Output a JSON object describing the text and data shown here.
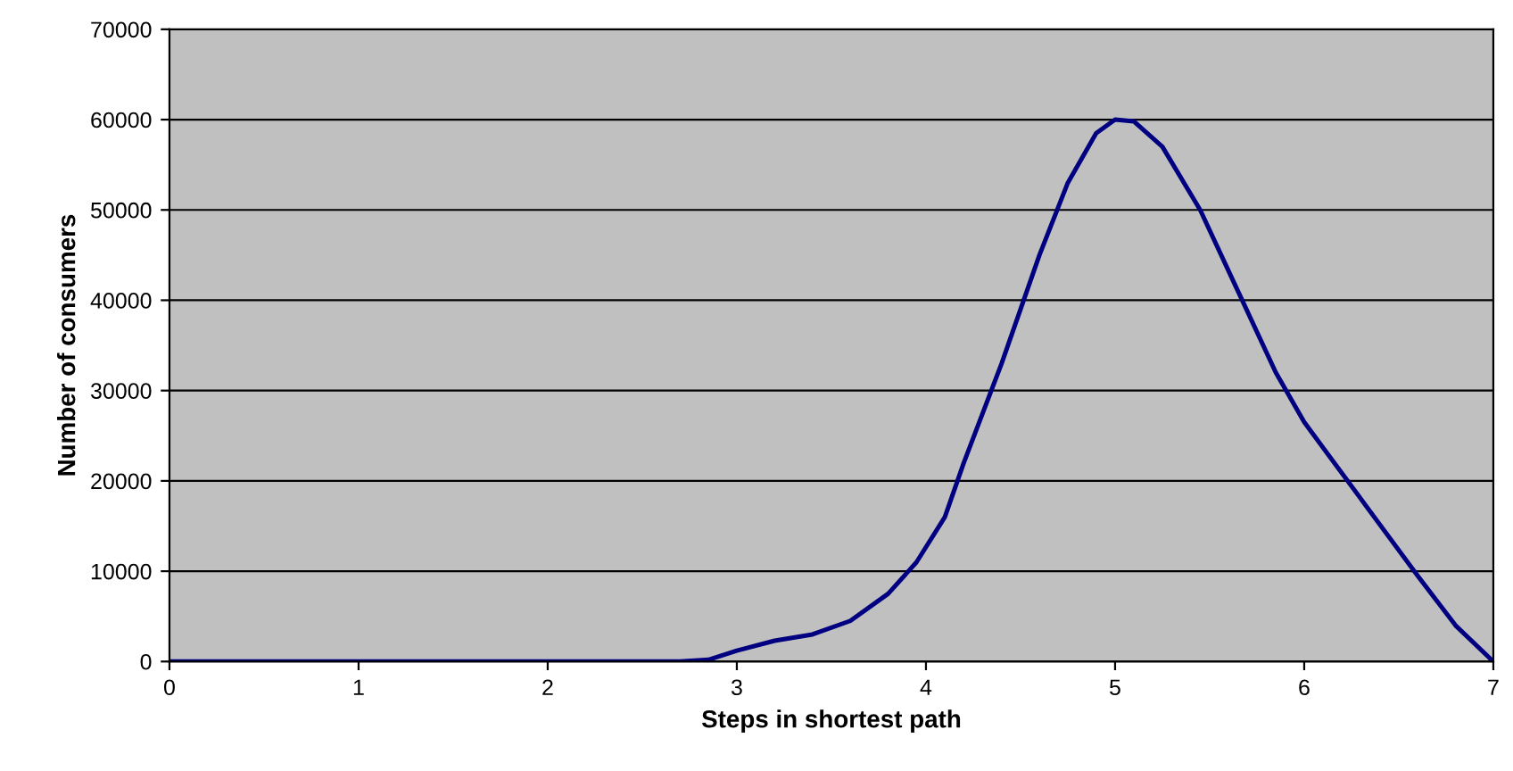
{
  "chart_data": {
    "type": "line",
    "xlabel": "Steps in shortest path",
    "ylabel": "Number of consumers",
    "series": [
      {
        "color": "#000080",
        "x": [
          0,
          1,
          2,
          2.7,
          2.85,
          3.0,
          3.2,
          3.4,
          3.6,
          3.8,
          3.95,
          4.1,
          4.2,
          4.4,
          4.6,
          4.75,
          4.9,
          5.0,
          5.1,
          5.25,
          5.45,
          5.65,
          5.85,
          6.0,
          6.3,
          6.6,
          6.8,
          7.0
        ],
        "values": [
          0,
          0,
          0,
          0,
          200,
          1200,
          2300,
          3000,
          4500,
          7500,
          11000,
          16000,
          22000,
          33000,
          45000,
          53000,
          58500,
          60000,
          59800,
          57000,
          50000,
          41000,
          32000,
          26500,
          18000,
          9500,
          4000,
          0
        ]
      }
    ],
    "xlim": [
      0,
      7
    ],
    "xticks": [
      0,
      1,
      2,
      3,
      4,
      5,
      6,
      7
    ],
    "ylim": [
      0,
      70000
    ],
    "yticks": [
      0,
      10000,
      20000,
      30000,
      40000,
      50000,
      60000,
      70000
    ],
    "grid": "y",
    "marker": "none",
    "line_style": "solid",
    "legend": false
  }
}
